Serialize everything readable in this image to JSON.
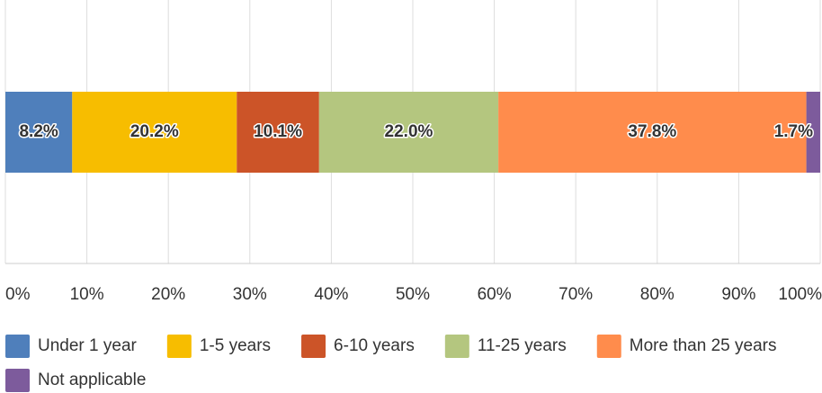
{
  "chart_data": {
    "type": "bar",
    "orientation": "horizontal",
    "stacked": true,
    "categories": [
      null
    ],
    "series": [
      {
        "name": "Under 1 year",
        "color": "#4f7fbb",
        "values": [
          8.2
        ],
        "value_labels": [
          "8.2%"
        ]
      },
      {
        "name": "1-5 years",
        "color": "#f7bd00",
        "values": [
          20.2
        ],
        "value_labels": [
          "20.2%"
        ]
      },
      {
        "name": "6-10 years",
        "color": "#cc5428",
        "values": [
          10.1
        ],
        "value_labels": [
          "10.1%"
        ]
      },
      {
        "name": "11-25 years",
        "color": "#b4c67f",
        "values": [
          22.0
        ],
        "value_labels": [
          "22.0%"
        ]
      },
      {
        "name": "More than 25 years",
        "color": "#ff8c4c",
        "values": [
          37.8
        ],
        "value_labels": [
          "37.8%"
        ]
      },
      {
        "name": "Not applicable",
        "color": "#7d5b9c",
        "values": [
          1.7
        ],
        "value_labels": [
          "1.7%"
        ]
      }
    ],
    "xlim": [
      0,
      100
    ],
    "xticks": [
      {
        "value": 0,
        "label": "0%"
      },
      {
        "value": 10,
        "label": "10%"
      },
      {
        "value": 20,
        "label": "20%"
      },
      {
        "value": 30,
        "label": "30%"
      },
      {
        "value": 40,
        "label": "40%"
      },
      {
        "value": 50,
        "label": "50%"
      },
      {
        "value": 60,
        "label": "60%"
      },
      {
        "value": 70,
        "label": "70%"
      },
      {
        "value": 80,
        "label": "80%"
      },
      {
        "value": 90,
        "label": "90%"
      },
      {
        "value": 100,
        "label": "100%"
      }
    ],
    "grid": true,
    "legend": "bottom"
  }
}
